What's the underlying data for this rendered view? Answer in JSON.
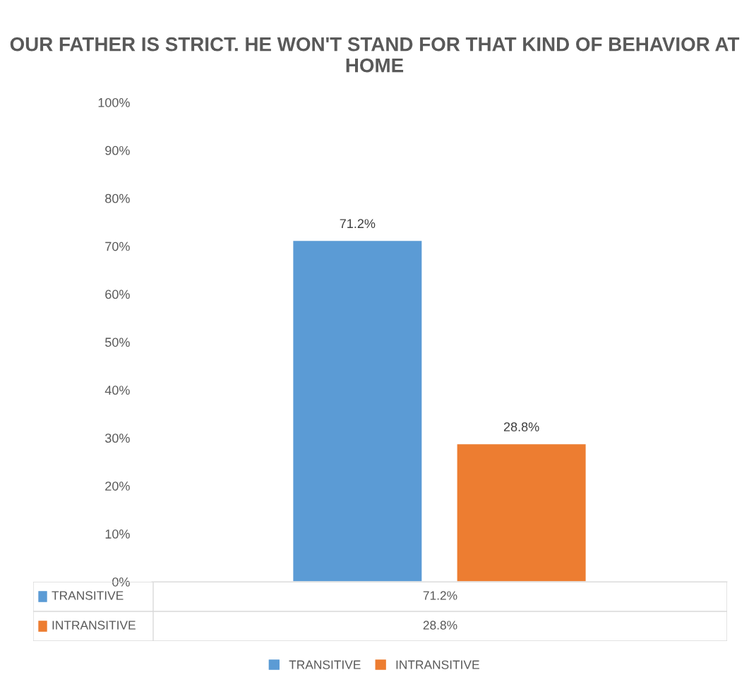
{
  "chart_data": {
    "type": "bar",
    "title": "OUR FATHER IS STRICT. HE WON'T STAND FOR THAT KIND OF BEHAVIOR AT HOME",
    "categories": [
      null
    ],
    "series": [
      {
        "name": "TRANSITIVE",
        "color": "#5b9bd5",
        "values": [
          71.2
        ],
        "value_labels": [
          "71.2%"
        ]
      },
      {
        "name": "INTRANSITIVE",
        "color": "#ed7d31",
        "values": [
          28.8
        ],
        "value_labels": [
          "28.8%"
        ]
      }
    ],
    "ylim": [
      0,
      100
    ],
    "yticks": [
      {
        "value": 0,
        "label": "0%"
      },
      {
        "value": 10,
        "label": "10%"
      },
      {
        "value": 20,
        "label": "20%"
      },
      {
        "value": 30,
        "label": "30%"
      },
      {
        "value": 40,
        "label": "40%"
      },
      {
        "value": 50,
        "label": "50%"
      },
      {
        "value": 60,
        "label": "60%"
      },
      {
        "value": 70,
        "label": "70%"
      },
      {
        "value": 80,
        "label": "80%"
      },
      {
        "value": 90,
        "label": "90%"
      },
      {
        "value": 100,
        "label": "100%"
      }
    ],
    "grid": false,
    "legend": "bottom"
  }
}
